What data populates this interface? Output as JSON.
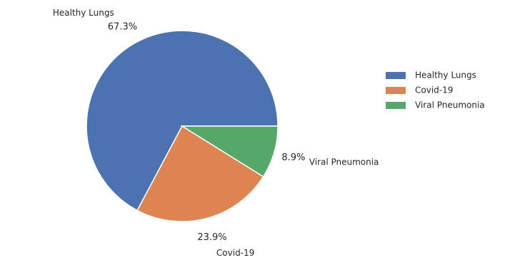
{
  "chart_data": {
    "type": "pie",
    "title": "",
    "categories": [
      "Healthy Lungs",
      "Covid-19",
      "Viral Pneumonia"
    ],
    "values": [
      67.3,
      23.9,
      8.9
    ],
    "value_labels": [
      "67.3%",
      "23.9%",
      "8.9%"
    ],
    "colors": [
      "#4c72b0",
      "#dd8452",
      "#55a868"
    ],
    "start_angle_deg": 0,
    "direction": "counterclockwise",
    "legend": {
      "placement": "right",
      "entries": [
        "Healthy Lungs",
        "Covid-19",
        "Viral Pneumonia"
      ]
    }
  }
}
